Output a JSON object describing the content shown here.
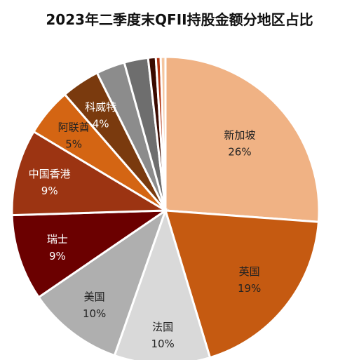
{
  "chart_data": {
    "type": "pie",
    "title": "2023年二季度末QFII持股金额分地区占比",
    "start_angle_deg": 0,
    "direction": "clockwise",
    "slices": [
      {
        "name": "新加坡",
        "value": 26,
        "label": "26%",
        "color": "#F0B284",
        "label_color": "#222222"
      },
      {
        "name": "英国",
        "value": 19,
        "label": "19%",
        "color": "#C55A11",
        "label_color": "#222222"
      },
      {
        "name": "法国",
        "value": 10,
        "label": "10%",
        "color": "#D9D9D9",
        "label_color": "#222222"
      },
      {
        "name": "美国",
        "value": 10,
        "label": "10%",
        "color": "#AFAFAF",
        "label_color": "#222222"
      },
      {
        "name": "瑞士",
        "value": 9,
        "label": "9%",
        "color": "#6B0000",
        "label_color": "#ffffff"
      },
      {
        "name": "中国香港",
        "value": 9,
        "label": "9%",
        "color": "#9C3412",
        "label_color": "#ffffff"
      },
      {
        "name": "阿联酋",
        "value": 5,
        "label": "5%",
        "color": "#D46513",
        "label_color": "#222222"
      },
      {
        "name": "科威特",
        "value": 4,
        "label": "4%",
        "color": "#7A3A0E",
        "label_color": "#ffffff"
      },
      {
        "name": "",
        "value": 3,
        "label": "",
        "color": "#8C8C8C",
        "label_color": "#ffffff"
      },
      {
        "name": "",
        "value": 2.5,
        "label": "",
        "color": "#6E6E6E",
        "label_color": "#ffffff"
      },
      {
        "name": "",
        "value": 0.8,
        "label": "",
        "color": "#3A0A00",
        "label_color": "#ffffff"
      },
      {
        "name": "",
        "value": 0.5,
        "label": "",
        "color": "#B0300F",
        "label_color": "#ffffff"
      },
      {
        "name": "",
        "value": 0.5,
        "label": "",
        "color": "#F4C6A0",
        "label_color": "#ffffff"
      }
    ]
  }
}
